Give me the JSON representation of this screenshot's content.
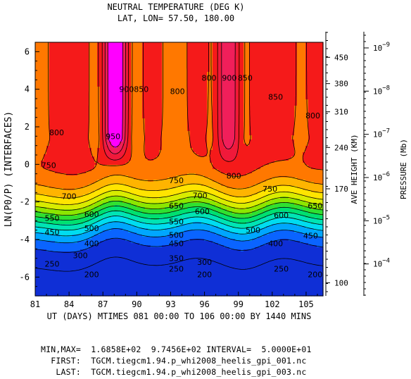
{
  "chart_data": {
    "type": "contour",
    "title": "NEUTRAL TEMPERATURE (DEG K)",
    "subtitle": "LAT, LON= 57.50,   180.00",
    "xlabel": "UT (DAYS) MTIMES 081 00:00 TO 106 00:00 BY 1440 MINS",
    "ylabel": "LN(P0/P) (INTERFACES)",
    "xlim": [
      81,
      106.5
    ],
    "ylim": [
      -7,
      6.5
    ],
    "x_ticks": [
      81,
      84,
      87,
      90,
      93,
      96,
      99,
      102,
      105
    ],
    "y_ticks": [
      -6,
      -4,
      -2,
      0,
      2,
      4,
      6
    ],
    "right_axis_height": {
      "label": "AVE HEIGHT (KM)",
      "ticks": [
        {
          "value": "450",
          "lnp": 5.7
        },
        {
          "value": "380",
          "lnp": 4.3
        },
        {
          "value": "310",
          "lnp": 2.8
        },
        {
          "value": "240",
          "lnp": 0.9
        },
        {
          "value": "170",
          "lnp": -1.3
        },
        {
          "value": "100",
          "lnp": -6.3
        }
      ]
    },
    "right_axis_pressure": {
      "label": "PRESSURE (Mb)",
      "ticks": [
        {
          "value": "9",
          "lnp": 6.2
        },
        {
          "value": "8",
          "lnp": 3.9
        },
        {
          "value": "7",
          "lnp": 1.6
        },
        {
          "value": "6",
          "lnp": -0.7
        },
        {
          "value": "5",
          "lnp": -3.0
        },
        {
          "value": "4",
          "lnp": -5.3
        }
      ]
    },
    "contour_levels": [
      200,
      250,
      300,
      350,
      400,
      450,
      500,
      550,
      600,
      650,
      700,
      750,
      800,
      850,
      900,
      950
    ],
    "contour_labels": [
      {
        "text": "200",
        "x": 86.0,
        "y": -5.85
      },
      {
        "text": "250",
        "x": 82.5,
        "y": -5.3
      },
      {
        "text": "300",
        "x": 85.0,
        "y": -4.85
      },
      {
        "text": "450",
        "x": 82.5,
        "y": -3.6
      },
      {
        "text": "400",
        "x": 86.0,
        "y": -4.2
      },
      {
        "text": "550",
        "x": 82.5,
        "y": -2.85
      },
      {
        "text": "500",
        "x": 86.0,
        "y": -3.4
      },
      {
        "text": "600",
        "x": 86.0,
        "y": -2.65
      },
      {
        "text": "700",
        "x": 84.0,
        "y": -1.7
      },
      {
        "text": "750",
        "x": 82.2,
        "y": -0.05
      },
      {
        "text": "800",
        "x": 82.9,
        "y": 1.7
      },
      {
        "text": "950",
        "x": 87.9,
        "y": 1.5
      },
      {
        "text": "900",
        "x": 89.1,
        "y": 4.0
      },
      {
        "text": "850",
        "x": 90.4,
        "y": 4.0
      },
      {
        "text": "800",
        "x": 93.6,
        "y": 3.9
      },
      {
        "text": "750",
        "x": 93.5,
        "y": -0.85
      },
      {
        "text": "700",
        "x": 95.6,
        "y": -1.65
      },
      {
        "text": "650",
        "x": 93.5,
        "y": -2.2
      },
      {
        "text": "600",
        "x": 95.8,
        "y": -2.5
      },
      {
        "text": "550",
        "x": 93.5,
        "y": -3.05
      },
      {
        "text": "500",
        "x": 93.5,
        "y": -3.75
      },
      {
        "text": "450",
        "x": 93.5,
        "y": -4.2
      },
      {
        "text": "350",
        "x": 93.5,
        "y": -5.0
      },
      {
        "text": "300",
        "x": 96.0,
        "y": -5.2
      },
      {
        "text": "250",
        "x": 93.5,
        "y": -5.55
      },
      {
        "text": "200",
        "x": 96.0,
        "y": -5.85
      },
      {
        "text": "800",
        "x": 96.4,
        "y": 4.6
      },
      {
        "text": "900",
        "x": 98.2,
        "y": 4.6
      },
      {
        "text": "850",
        "x": 99.6,
        "y": 4.6
      },
      {
        "text": "800",
        "x": 98.6,
        "y": -0.6
      },
      {
        "text": "850",
        "x": 102.3,
        "y": 3.6
      },
      {
        "text": "750",
        "x": 101.8,
        "y": -1.3
      },
      {
        "text": "500",
        "x": 100.3,
        "y": -3.5
      },
      {
        "text": "600",
        "x": 102.8,
        "y": -2.7
      },
      {
        "text": "400",
        "x": 102.3,
        "y": -4.2
      },
      {
        "text": "650",
        "x": 105.8,
        "y": -2.2
      },
      {
        "text": "450",
        "x": 105.4,
        "y": -3.8
      },
      {
        "text": "250",
        "x": 102.8,
        "y": -5.55
      },
      {
        "text": "200",
        "x": 105.8,
        "y": -5.85
      },
      {
        "text": "800",
        "x": 105.6,
        "y": 2.6
      }
    ]
  },
  "footer": {
    "minmax": "MIN,MAX=  1.6858E+02  9.7456E+02 INTERVAL=  5.0000E+01",
    "first": "  FIRST:  TGCM.tiegcm1.94.p_whi2008_heelis_gpi_001.nc",
    "last": "   LAST:  TGCM.tiegcm1.94.p_whi2008_heelis_gpi_003.nc"
  },
  "colors": {
    "levels": [
      "#0f2fd6",
      "#0a64ff",
      "#00a6ff",
      "#00dcf0",
      "#00e4b4",
      "#00e070",
      "#30e030",
      "#8ce600",
      "#d8ec00",
      "#ffe400",
      "#ffb400",
      "#ff7800",
      "#f51a1a",
      "#f0193a",
      "#f01f5a",
      "#ff00ff"
    ]
  }
}
